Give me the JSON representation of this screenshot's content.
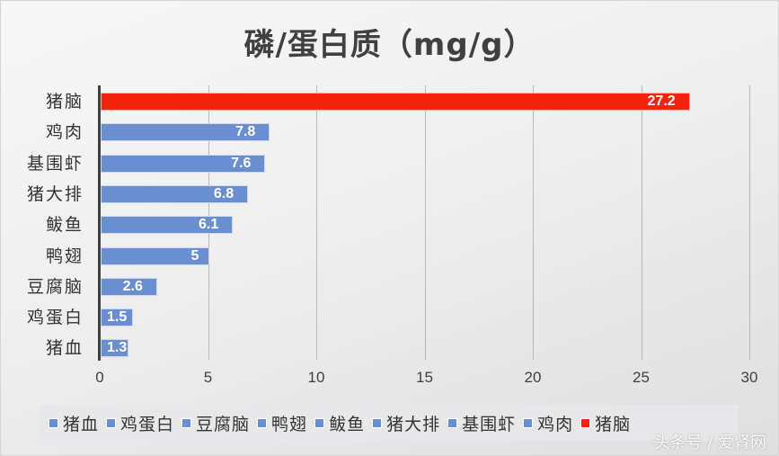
{
  "chart_data": {
    "type": "bar",
    "orientation": "horizontal",
    "title": "磷/蛋白质（mg/g）",
    "xlabel": "",
    "ylabel": "",
    "xlim": [
      0,
      30
    ],
    "x_ticks": [
      "0",
      "5",
      "10",
      "15",
      "20",
      "25",
      "30"
    ],
    "grid": "vertical",
    "legend_position": "bottom",
    "categories": [
      "猪脑",
      "鸡肉",
      "基围虾",
      "猪大排",
      "鲅鱼",
      "鸭翅",
      "豆腐脑",
      "鸡蛋白",
      "猪血"
    ],
    "values": [
      27.2,
      7.8,
      7.6,
      6.8,
      6.1,
      5,
      2.6,
      1.5,
      1.3
    ],
    "value_labels": [
      "27.2",
      "7.8",
      "7.6",
      "6.8",
      "6.1",
      "5",
      "2.6",
      "1.5",
      "1.3"
    ],
    "bar_colors": [
      "#f4230f",
      "#6a8fd0",
      "#6a8fd0",
      "#6a8fd0",
      "#6a8fd0",
      "#6a8fd0",
      "#6a8fd0",
      "#6a8fd0",
      "#6a8fd0"
    ],
    "legend": [
      "猪血",
      "鸡蛋白",
      "豆腐脑",
      "鸭翅",
      "鲅鱼",
      "猪大排",
      "基围虾",
      "鸡肉",
      "猪脑"
    ],
    "legend_colors": [
      "#6a8fd0",
      "#6a8fd0",
      "#6a8fd0",
      "#6a8fd0",
      "#6a8fd0",
      "#6a8fd0",
      "#6a8fd0",
      "#6a8fd0",
      "#f4230f"
    ]
  },
  "colors": {
    "highlight": "#f4230f",
    "default": "#6a8fd0",
    "text": "#404040"
  },
  "watermark": "头条号 / 爱肾网"
}
